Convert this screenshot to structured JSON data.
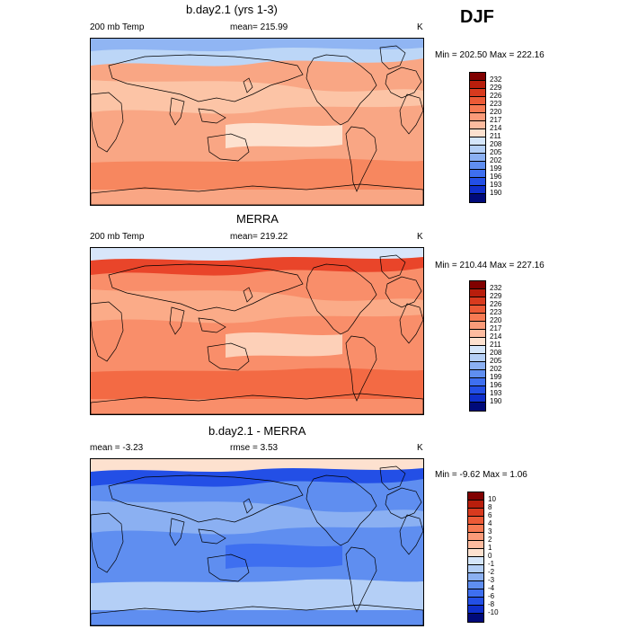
{
  "season": "DJF",
  "panels": [
    {
      "title": "b.day2.1 (yrs 1-3)",
      "variable": "200 mb Temp",
      "stat1": "mean= 215.99",
      "stat2": "",
      "units": "K",
      "minmax": "Min = 202.50 Max = 222.16",
      "levels": [
        "232",
        "229",
        "226",
        "223",
        "220",
        "217",
        "214",
        "211",
        "208",
        "205",
        "202",
        "199",
        "196",
        "193",
        "190"
      ],
      "colors": [
        "#800000",
        "#b81e0c",
        "#d83a1e",
        "#ec5a36",
        "#f77a53",
        "#fb9b79",
        "#fdbb9f",
        "#fde1cf",
        "#d5e6fa",
        "#b4cff6",
        "#8bb0f2",
        "#5f8ef0",
        "#3e6ff0",
        "#234fe6",
        "#0f2fcc",
        "#000a7a"
      ],
      "field_colors": [
        "#f9a684",
        "#fcc4a6",
        "#fde1cf",
        "#f7875f",
        "#bcd6f7",
        "#90b5f3"
      ]
    },
    {
      "title": "MERRA",
      "variable": "200 mb Temp",
      "stat1": "mean= 219.22",
      "stat2": "",
      "units": "K",
      "minmax": "Min = 210.44 Max = 227.16",
      "levels": [
        "232",
        "229",
        "226",
        "223",
        "220",
        "217",
        "214",
        "211",
        "208",
        "205",
        "202",
        "199",
        "196",
        "193",
        "190"
      ],
      "colors": [
        "#800000",
        "#b81e0c",
        "#d83a1e",
        "#ec5a36",
        "#f77a53",
        "#fb9b79",
        "#fdbb9f",
        "#fde1cf",
        "#d5e6fa",
        "#b4cff6",
        "#8bb0f2",
        "#5f8ef0",
        "#3e6ff0",
        "#234fe6",
        "#0f2fcc",
        "#000a7a"
      ],
      "field_colors": [
        "#f98e6a",
        "#fbab88",
        "#fdd0b8",
        "#f36a44",
        "#e9452a",
        "#d8e6fa"
      ]
    },
    {
      "title": "b.day2.1 - MERRA",
      "variable": "mean = -3.23",
      "stat1": "rmse =  3.53",
      "stat2": "",
      "units": "K",
      "minmax": "Min =  -9.62 Max =   1.06",
      "levels": [
        "10",
        "8",
        "6",
        "4",
        "3",
        "2",
        "1",
        "0",
        "-1",
        "-2",
        "-3",
        "-4",
        "-6",
        "-8",
        "-10"
      ],
      "colors": [
        "#800000",
        "#b81e0c",
        "#d83a1e",
        "#ec5a36",
        "#f77a53",
        "#fb9b79",
        "#fdbb9f",
        "#fde1cf",
        "#d5e6fa",
        "#b4cff6",
        "#8bb0f2",
        "#5f8ef0",
        "#3e6ff0",
        "#234fe6",
        "#0f2fcc",
        "#000a7a"
      ],
      "field_colors": [
        "#5f8ef0",
        "#8bb0f2",
        "#3e6ff0",
        "#b4cff6",
        "#234fe6",
        "#fde1cf"
      ]
    }
  ]
}
